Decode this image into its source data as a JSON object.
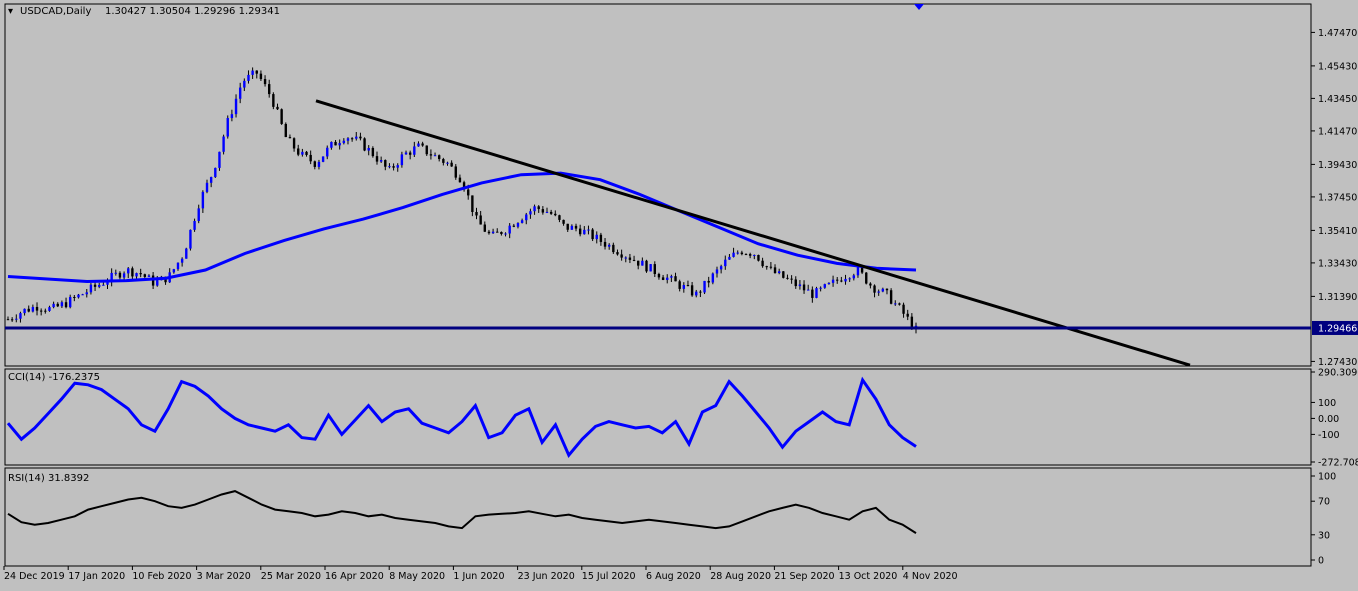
{
  "chart_data": [
    {
      "type": "candlestick",
      "symbol_label": "USDCAD,Daily",
      "ohlc_label": "1.30427 1.30504 1.29296 1.29341",
      "price_axis_ticks": [
        "1.47470",
        "1.45430",
        "1.43450",
        "1.41470",
        "1.39430",
        "1.37450",
        "1.35410",
        "1.33430",
        "1.31390",
        "1.27430"
      ],
      "current_price": "1.29466",
      "ylim": [
        1.2715,
        1.492
      ],
      "date_labels": [
        "24 Dec 2019",
        "17 Jan 2020",
        "10 Feb 2020",
        "3 Mar 2020",
        "25 Mar 2020",
        "16 Apr 2020",
        "8 May 2020",
        "1 Jun 2020",
        "23 Jun 2020",
        "15 Jul 2020",
        "6 Aug 2020",
        "28 Aug 2020",
        "21 Sep 2020",
        "13 Oct 2020",
        "4 Nov 2020"
      ],
      "close_series": [
        1.3,
        1.305,
        1.308,
        1.306,
        1.31,
        1.315,
        1.32,
        1.325,
        1.33,
        1.328,
        1.322,
        1.326,
        1.34,
        1.37,
        1.39,
        1.42,
        1.445,
        1.45,
        1.435,
        1.41,
        1.4,
        1.395,
        1.405,
        1.412,
        1.408,
        1.4,
        1.39,
        1.4,
        1.405,
        1.4,
        1.395,
        1.385,
        1.36,
        1.35,
        1.355,
        1.362,
        1.368,
        1.365,
        1.356,
        1.355,
        1.35,
        1.345,
        1.34,
        1.335,
        1.33,
        1.325,
        1.32,
        1.315,
        1.325,
        1.335,
        1.342,
        1.34,
        1.33,
        1.325,
        1.32,
        1.315,
        1.32,
        1.326,
        1.33,
        1.32,
        1.315,
        1.305,
        1.2934
      ],
      "ma_series": [
        1.326,
        1.3245,
        1.323,
        1.3235,
        1.325,
        1.33,
        1.34,
        1.348,
        1.355,
        1.361,
        1.368,
        1.376,
        1.383,
        1.388,
        1.389,
        1.385,
        1.376,
        1.366,
        1.356,
        1.346,
        1.339,
        1.334,
        1.331,
        1.33
      ],
      "trendline": {
        "start": [
          1.433
        ],
        "end": [
          1.272
        ]
      },
      "support_level": 1.29466
    },
    {
      "type": "line",
      "indicator_label": "CCI(14) -176.2375",
      "axis_ticks": [
        "290.3096",
        "100",
        "0.00",
        "-100",
        "-272.7082"
      ],
      "values": [
        -30,
        -130,
        -60,
        30,
        120,
        220,
        210,
        180,
        120,
        60,
        -40,
        -80,
        60,
        230,
        200,
        140,
        60,
        0,
        -40,
        -60,
        -80,
        -40,
        -120,
        -130,
        20,
        -100,
        -10,
        80,
        -20,
        40,
        60,
        -30,
        -60,
        -90,
        -20,
        80,
        -120,
        -90,
        20,
        60,
        -150,
        -40,
        -230,
        -130,
        -50,
        -20,
        -40,
        -60,
        -50,
        -90,
        -20,
        -160,
        40,
        80,
        230,
        140,
        40,
        -60,
        -180,
        -80,
        -20,
        40,
        -20,
        -40,
        240,
        120,
        -40,
        -120,
        -176
      ]
    },
    {
      "type": "line",
      "indicator_label": "RSI(14) 31.8392",
      "axis_ticks": [
        "100",
        "70",
        "30",
        "0"
      ],
      "values": [
        55,
        45,
        42,
        44,
        48,
        52,
        60,
        64,
        68,
        72,
        74,
        70,
        64,
        62,
        66,
        72,
        78,
        82,
        74,
        66,
        60,
        58,
        56,
        52,
        54,
        58,
        56,
        52,
        54,
        50,
        48,
        46,
        44,
        40,
        38,
        52,
        54,
        55,
        56,
        58,
        55,
        52,
        54,
        50,
        48,
        46,
        44,
        46,
        48,
        46,
        44,
        42,
        40,
        38,
        40,
        46,
        52,
        58,
        62,
        66,
        62,
        56,
        52,
        48,
        58,
        62,
        48,
        42,
        32
      ]
    }
  ]
}
